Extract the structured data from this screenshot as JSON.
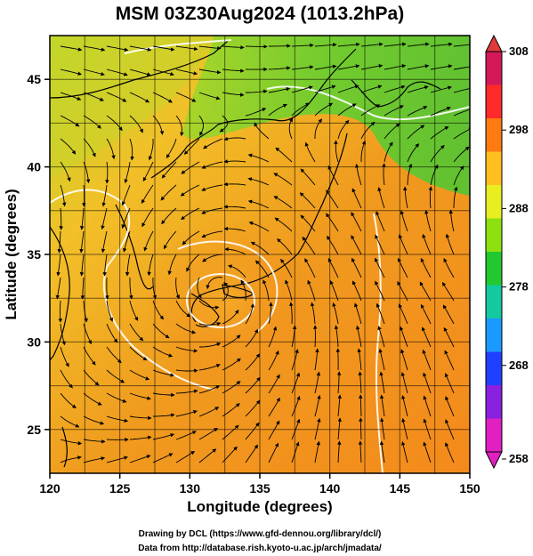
{
  "title": "MSM 03Z30Aug2024 (1013.2hPa)",
  "xlabel": "Longitude (degrees)",
  "ylabel": "Latitude  (degrees)",
  "x_ticks": [
    "120",
    "125",
    "130",
    "135",
    "140",
    "145",
    "150"
  ],
  "y_ticks": [
    "25",
    "30",
    "35",
    "40",
    "45"
  ],
  "colorbar": {
    "labels": [
      "308",
      "298",
      "288",
      "278",
      "268",
      "258"
    ],
    "colors": [
      "#d4185a",
      "#ff2a2a",
      "#ff7a10",
      "#ffbf20",
      "#e8ee20",
      "#8fe010",
      "#22c830",
      "#14c8a0",
      "#1a9aff",
      "#2040ff",
      "#8a20e0",
      "#e020c0"
    ]
  },
  "credits": {
    "line1": "Drawing by DCL (https://www.gfd-dennou.org/library/dcl/)",
    "line2": "Data from http://database.rish.kyoto-u.ac.jp/arch/jmadata/"
  },
  "map": {
    "lon_range": [
      120,
      150
    ],
    "lat_range": [
      22.5,
      47.5
    ],
    "typhoon_center": {
      "lon": 132.0,
      "lat": 33.0
    }
  }
}
